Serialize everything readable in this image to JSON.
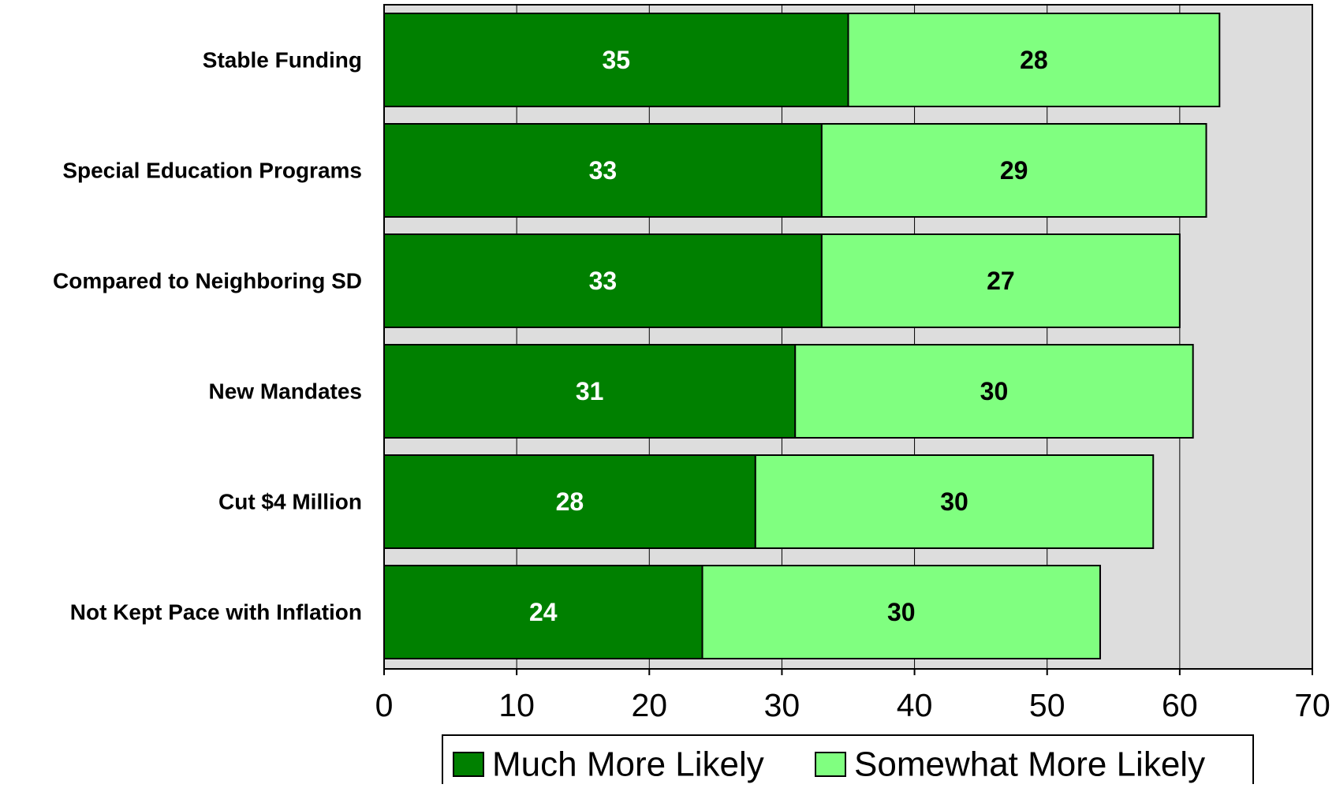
{
  "chart_data": {
    "type": "bar",
    "orientation": "horizontal",
    "stacked": true,
    "categories": [
      "Stable Funding",
      "Special Education Programs",
      "Compared to Neighboring SD",
      "New Mandates",
      "Cut $4 Million",
      "Not Kept Pace with Inflation"
    ],
    "series": [
      {
        "name": "Much More Likely",
        "color": "#008000",
        "label_color": "#ffffff",
        "values": [
          35,
          33,
          33,
          31,
          28,
          24
        ]
      },
      {
        "name": "Somewhat More Likely",
        "color": "#80ff80",
        "label_color": "#000000",
        "values": [
          28,
          29,
          27,
          30,
          30,
          30
        ]
      }
    ],
    "xlim": [
      0,
      70
    ],
    "xticks": [
      "0",
      "10",
      "20",
      "30",
      "40",
      "50",
      "60",
      "70"
    ],
    "title": "",
    "xlabel": "",
    "ylabel": "",
    "grid": true,
    "plot_background": "#dddddd",
    "legend_position": "bottom"
  }
}
